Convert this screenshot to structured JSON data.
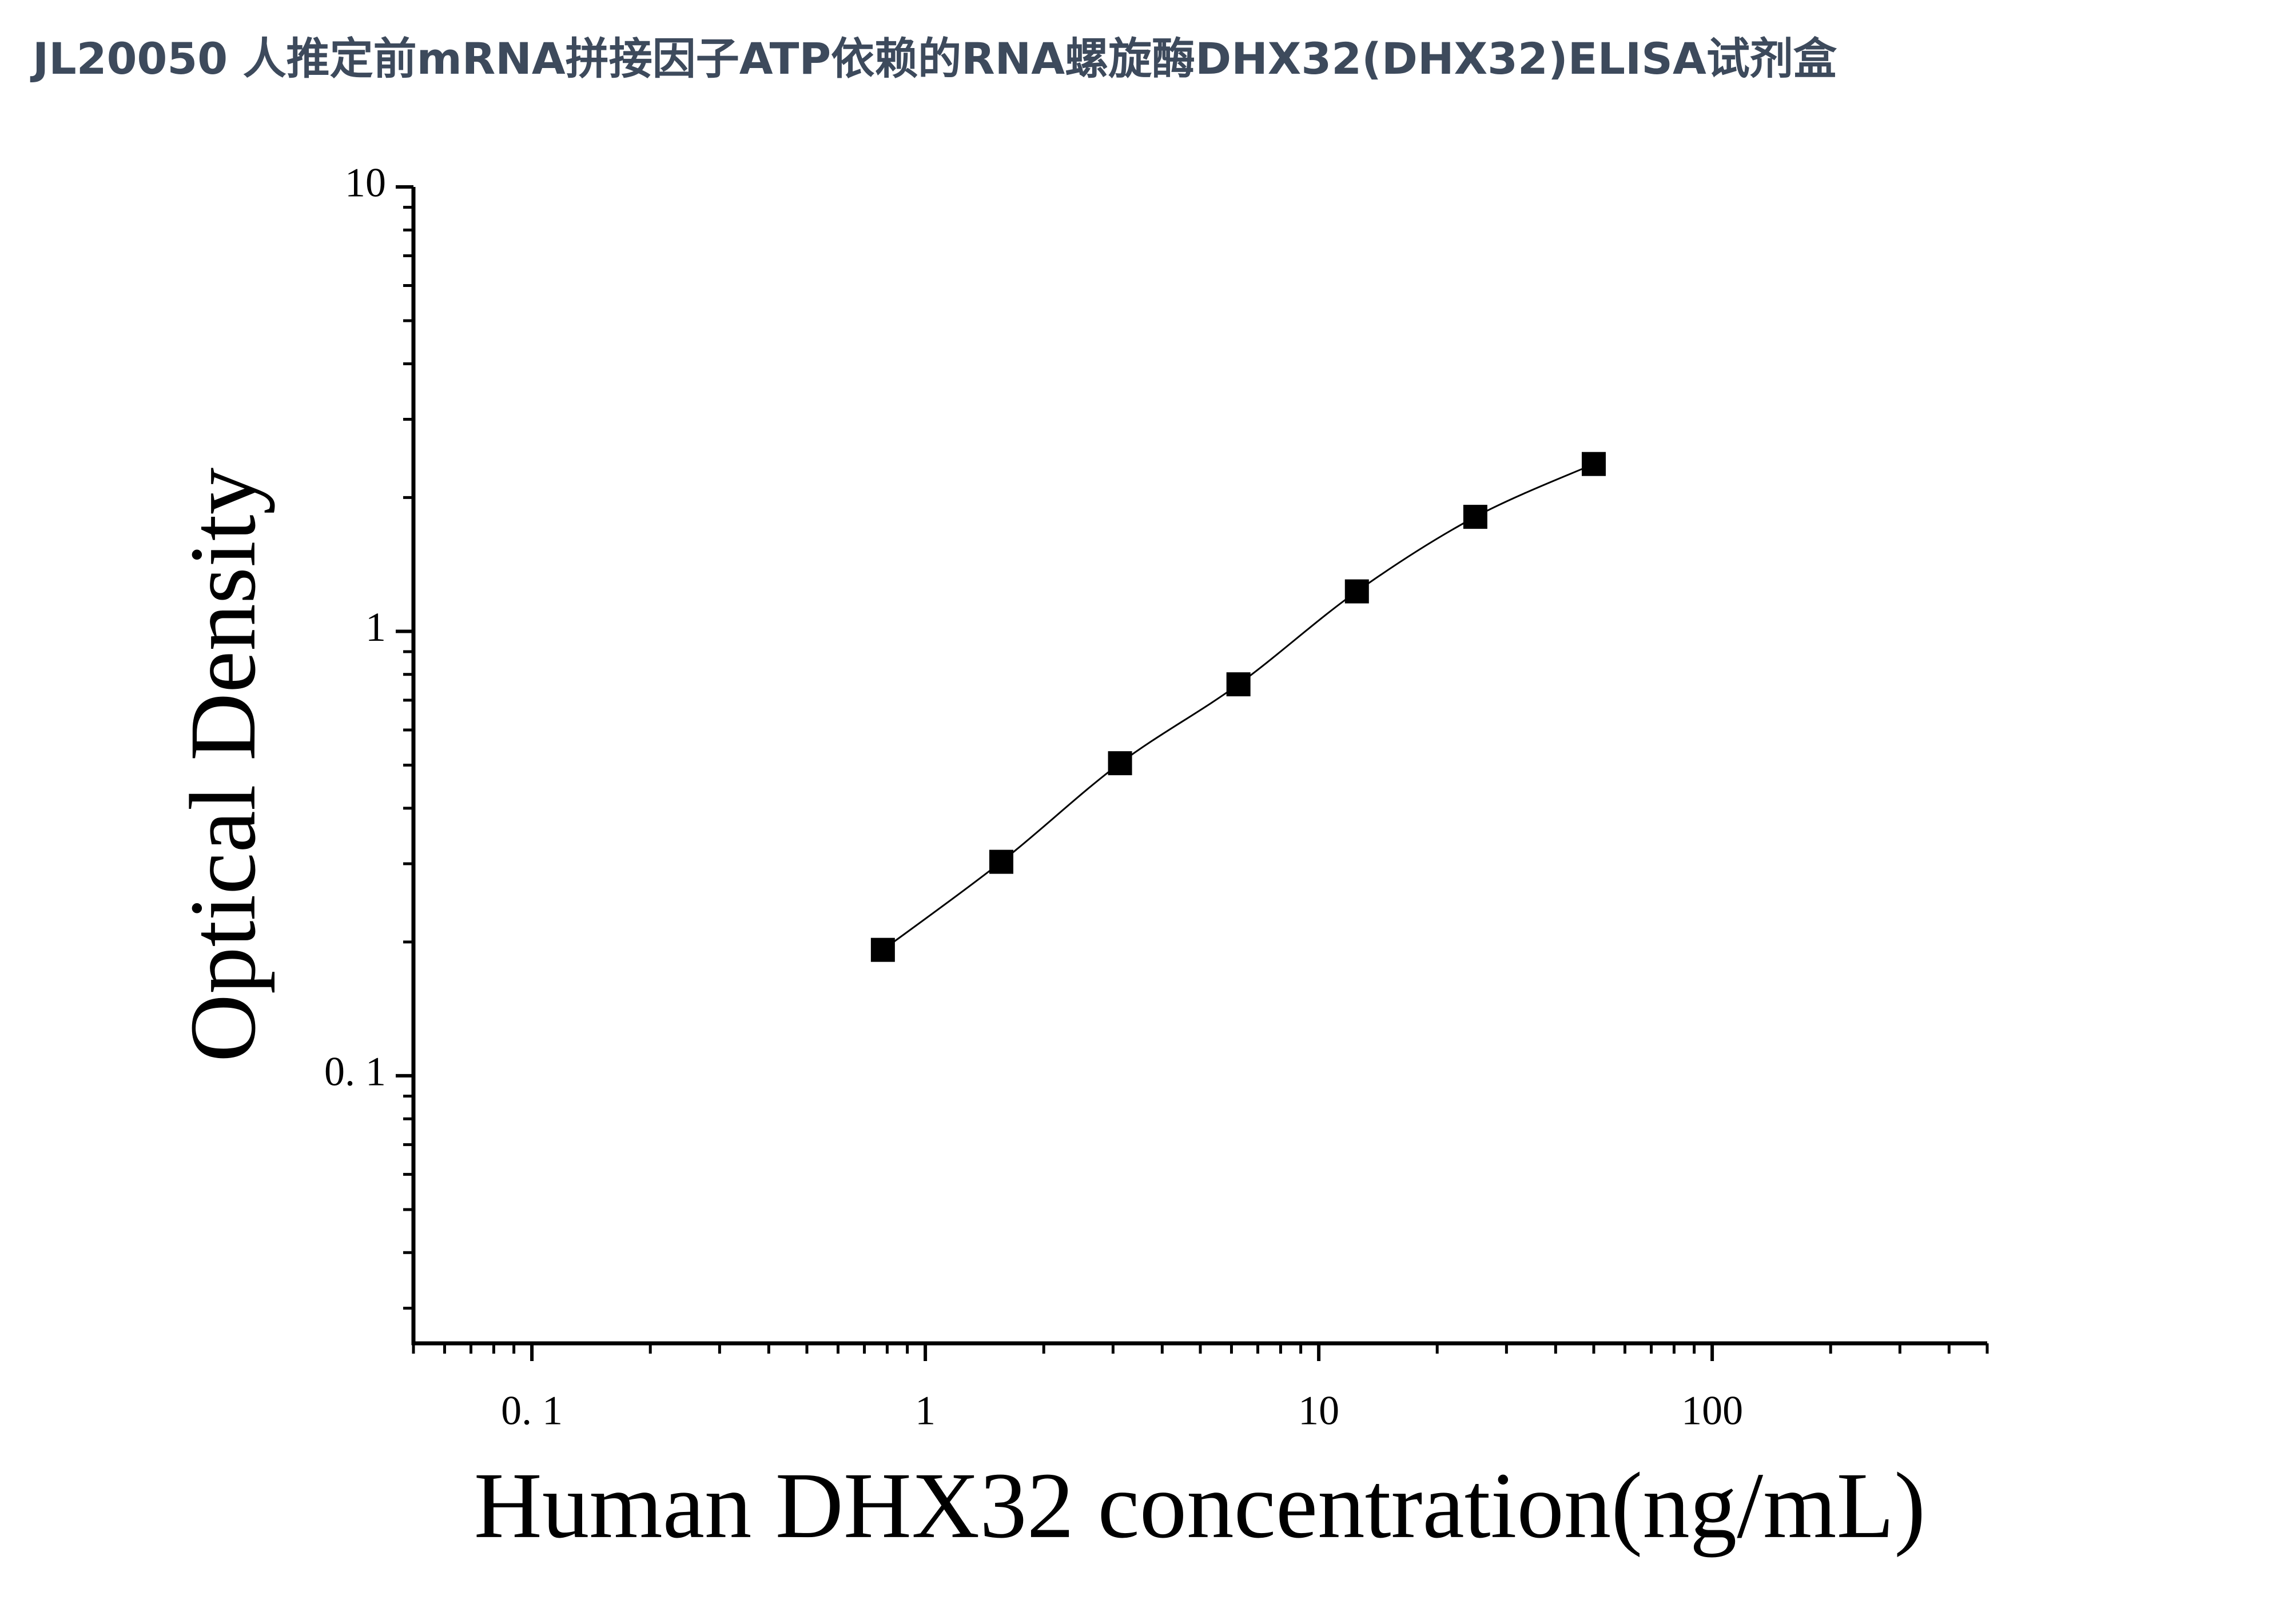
{
  "chart_data": {
    "type": "scatter",
    "title": "JL20050 人推定前mRNA拼接因子ATP依赖的RNA螺旋酶DHX32(DHX32)ELISA试剂盒",
    "x_label": "Human DHX32 concentration(ng/mL)",
    "y_label": "Optical Density",
    "x_scale": "log",
    "y_scale": "log",
    "xlim": [
      0.05,
      500
    ],
    "ylim": [
      0.025,
      10
    ],
    "xticks": [
      {
        "value": 0.1,
        "label": "0. 1"
      },
      1,
      10,
      100
    ],
    "yticks": [
      {
        "value": 0.1,
        "label": "0. 1"
      },
      1,
      10
    ],
    "series": [
      {
        "name": "DHX32",
        "color": "#000000",
        "x": [
          0.78,
          1.56,
          3.125,
          6.25,
          12.5,
          25,
          50
        ],
        "values": [
          0.192,
          0.303,
          0.505,
          0.76,
          1.23,
          1.81,
          2.38
        ]
      }
    ],
    "fit_curve": true
  }
}
